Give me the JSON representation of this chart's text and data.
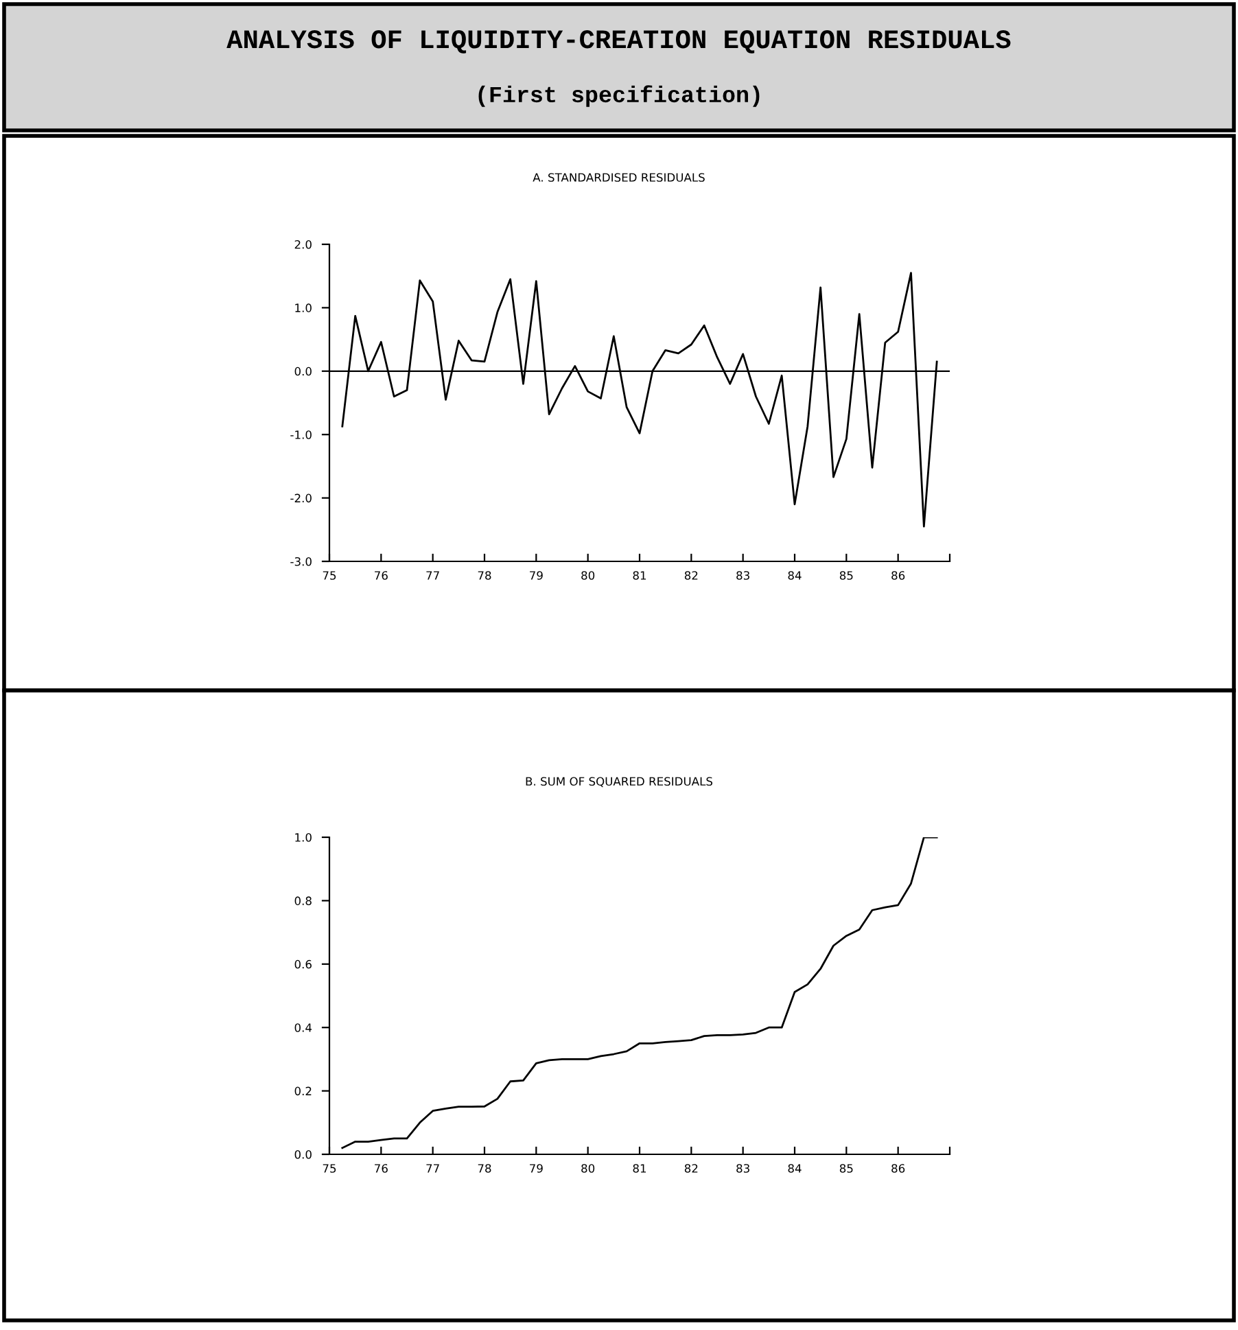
{
  "chart_data": [
    {
      "type": "line",
      "title": "A. STANDARDISED RESIDUALS",
      "annotations": [
        "ANALYSIS OF LIQUIDITY-CREATION EQUATION RESIDUALS",
        "(First specification)"
      ],
      "x": [
        75.25,
        75.5,
        75.75,
        76.0,
        76.25,
        76.5,
        76.75,
        77.0,
        77.25,
        77.5,
        77.75,
        78.0,
        78.25,
        78.5,
        78.75,
        79.0,
        79.25,
        79.5,
        79.75,
        80.0,
        80.25,
        80.5,
        80.75,
        81.0,
        81.25,
        81.5,
        81.75,
        82.0,
        82.25,
        82.5,
        82.75,
        83.0,
        83.25,
        83.5,
        83.75,
        84.0,
        84.25,
        84.5,
        84.75,
        85.0,
        85.25,
        85.5,
        85.75,
        86.0,
        86.25,
        86.5,
        86.75
      ],
      "series": [
        {
          "color": "#000000",
          "values": [
            -0.87,
            0.87,
            0.0,
            0.46,
            -0.4,
            -0.3,
            1.43,
            1.1,
            -0.45,
            0.48,
            0.17,
            0.15,
            0.93,
            1.45,
            -0.2,
            1.42,
            -0.68,
            -0.27,
            0.08,
            -0.32,
            -0.43,
            0.55,
            -0.57,
            -0.98,
            0.0,
            0.33,
            0.28,
            0.42,
            0.72,
            0.22,
            -0.2,
            0.27,
            -0.4,
            -0.83,
            -0.07,
            -2.1,
            -0.87,
            1.32,
            -1.67,
            -1.07,
            0.9,
            -1.52,
            0.45,
            0.62,
            1.55,
            -2.45,
            0.15
          ]
        }
      ],
      "xlim": [
        75,
        87
      ],
      "xticks": [
        75,
        76,
        77,
        78,
        79,
        80,
        81,
        82,
        83,
        84,
        85,
        86,
        {
          "value": 87,
          "label": null
        }
      ],
      "ylim": [
        -3,
        2
      ],
      "yticks": [
        {
          "value": -3,
          "label": "-3.0"
        },
        {
          "value": -2,
          "label": "-2.0"
        },
        {
          "value": -1,
          "label": "-1.0"
        },
        {
          "value": 0,
          "label": "0.0"
        },
        {
          "value": 1,
          "label": "1.0"
        },
        {
          "value": 2,
          "label": "2.0"
        }
      ],
      "ref_lines": [
        {
          "axis": "y",
          "value": 0,
          "label": null,
          "color": "#000000"
        }
      ]
    },
    {
      "type": "line",
      "title": "B. SUM OF SQUARED RESIDUALS",
      "x": [
        75.25,
        75.5,
        75.75,
        76.0,
        76.25,
        76.5,
        76.75,
        77.0,
        77.25,
        77.5,
        77.75,
        78.0,
        78.25,
        78.5,
        78.75,
        79.0,
        79.25,
        79.5,
        79.75,
        80.0,
        80.25,
        80.5,
        80.75,
        81.0,
        81.25,
        81.5,
        81.75,
        82.0,
        82.25,
        82.5,
        82.75,
        83.0,
        83.25,
        83.5,
        83.75,
        84.0,
        84.25,
        84.5,
        84.75,
        85.0,
        85.25,
        85.5,
        85.75,
        86.0,
        86.25,
        86.5,
        86.75
      ],
      "series": [
        {
          "color": "#000000",
          "values": [
            0.02,
            0.04,
            0.04,
            0.045,
            0.05,
            0.05,
            0.1,
            0.137,
            0.144,
            0.15,
            0.15,
            0.151,
            0.175,
            0.23,
            0.233,
            0.287,
            0.297,
            0.3,
            0.3,
            0.3,
            0.31,
            0.316,
            0.325,
            0.35,
            0.35,
            0.354,
            0.357,
            0.36,
            0.373,
            0.376,
            0.376,
            0.378,
            0.383,
            0.4,
            0.4,
            0.512,
            0.536,
            0.585,
            0.658,
            0.689,
            0.709,
            0.77,
            0.779,
            0.786,
            0.854,
            1.0,
            1.0
          ]
        }
      ],
      "xlim": [
        75,
        87
      ],
      "xticks": [
        75,
        76,
        77,
        78,
        79,
        80,
        81,
        82,
        83,
        84,
        85,
        86,
        {
          "value": 87,
          "label": null
        }
      ],
      "ylim": [
        0,
        1
      ],
      "yticks": [
        {
          "value": 0,
          "label": "0.0"
        },
        {
          "value": 0.2,
          "label": "0.2"
        },
        {
          "value": 0.4,
          "label": "0.4"
        },
        {
          "value": 0.6,
          "label": "0.6"
        },
        {
          "value": 0.8,
          "label": "0.8"
        },
        {
          "value": 1,
          "label": "1.0"
        }
      ]
    }
  ]
}
